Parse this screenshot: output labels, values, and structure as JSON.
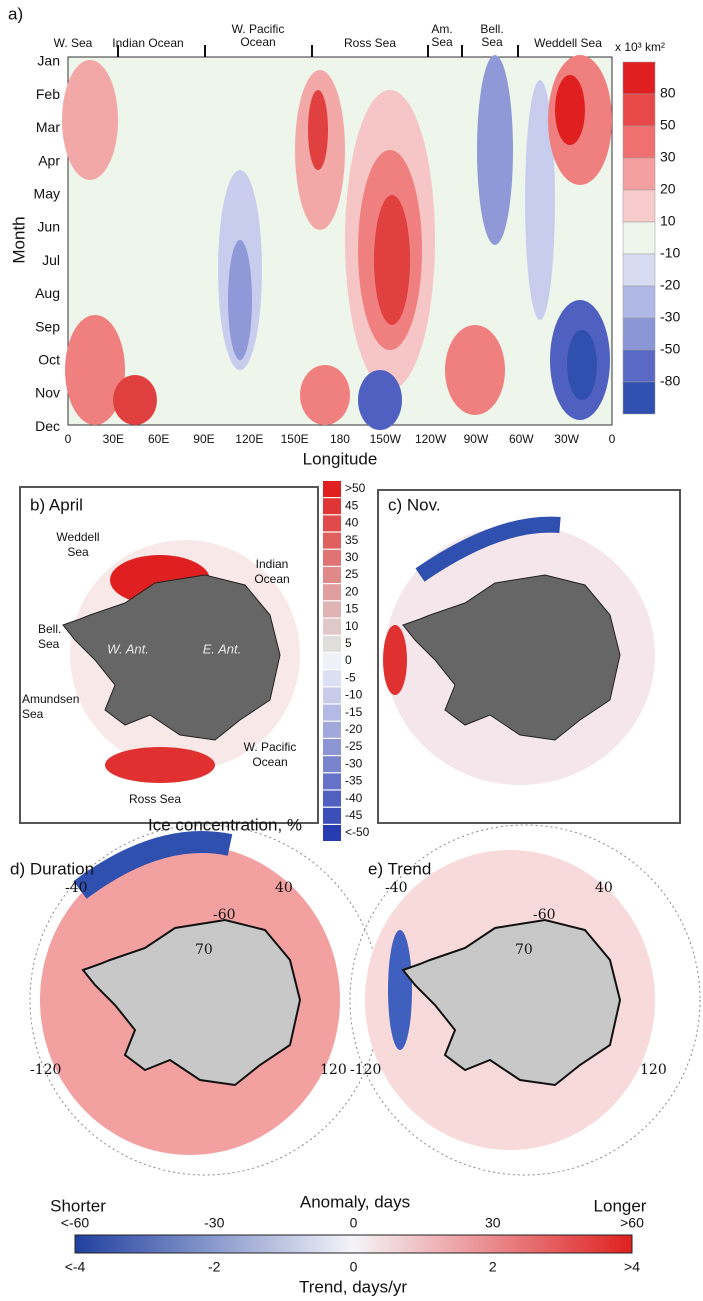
{
  "panel_a": {
    "label": "a)",
    "regions": [
      [
        "W. Sea"
      ],
      [
        "Indian Ocean"
      ],
      [
        "W. Pacific",
        "Ocean"
      ],
      [
        "Ross Sea"
      ],
      [
        "Am.",
        "Sea"
      ],
      [
        "Bell.",
        "Sea"
      ],
      [
        "Weddell Sea"
      ]
    ],
    "months": [
      "Jan",
      "Feb",
      "Mar",
      "Apr",
      "May",
      "Jun",
      "Jul",
      "Aug",
      "Sep",
      "Oct",
      "Nov",
      "Dec"
    ],
    "longitudes": [
      "0",
      "30E",
      "60E",
      "90E",
      "120E",
      "150E",
      "180",
      "150W",
      "120W",
      "90W",
      "60W",
      "30W",
      "0"
    ],
    "x_label": "Longitude",
    "y_label": "Month",
    "colorbar_unit": "x 10³ km²",
    "colorbar_labels": [
      "80",
      "50",
      "30",
      "20",
      "10",
      "-10",
      "-20",
      "-30",
      "-50",
      "-80"
    ]
  },
  "panel_b": {
    "title": "b) April",
    "labels": [
      [
        "Weddell",
        "Sea"
      ],
      [
        "Indian",
        "Ocean"
      ],
      [
        "Bell.",
        "Sea"
      ],
      [
        "Amundsen",
        "Sea"
      ],
      [
        "W. Ant."
      ],
      [
        "E. Ant."
      ],
      [
        "W. Pacific",
        "Ocean"
      ],
      [
        "Ross Sea"
      ]
    ]
  },
  "panel_c": {
    "title": "c) Nov."
  },
  "ice_colorbar": {
    "labels": [
      ">50",
      "45",
      "40",
      "35",
      "30",
      "25",
      "20",
      "15",
      "10",
      "5",
      "0",
      "-5",
      "-10",
      "-15",
      "-20",
      "-25",
      "-30",
      "-35",
      "-40",
      "-45",
      "<-50"
    ],
    "title": "Ice concentration, %"
  },
  "panel_d": {
    "title": "d) Duration",
    "grid_labels": [
      "-40",
      "40",
      "-60",
      "70",
      "-120",
      "120"
    ]
  },
  "panel_e": {
    "title": "e) Trend",
    "grid_labels": [
      "-40",
      "40",
      "-60",
      "70",
      "-120",
      "120"
    ]
  },
  "bottom_colorbar": {
    "left": "Shorter",
    "title": "Anomaly, days",
    "right": "Longer",
    "anomaly_ticks": [
      "<-60",
      "-30",
      "0",
      "30",
      ">60"
    ],
    "trend_ticks": [
      "<-4",
      "-2",
      "0",
      "2",
      ">4"
    ],
    "trend_title": "Trend, days/yr"
  }
}
